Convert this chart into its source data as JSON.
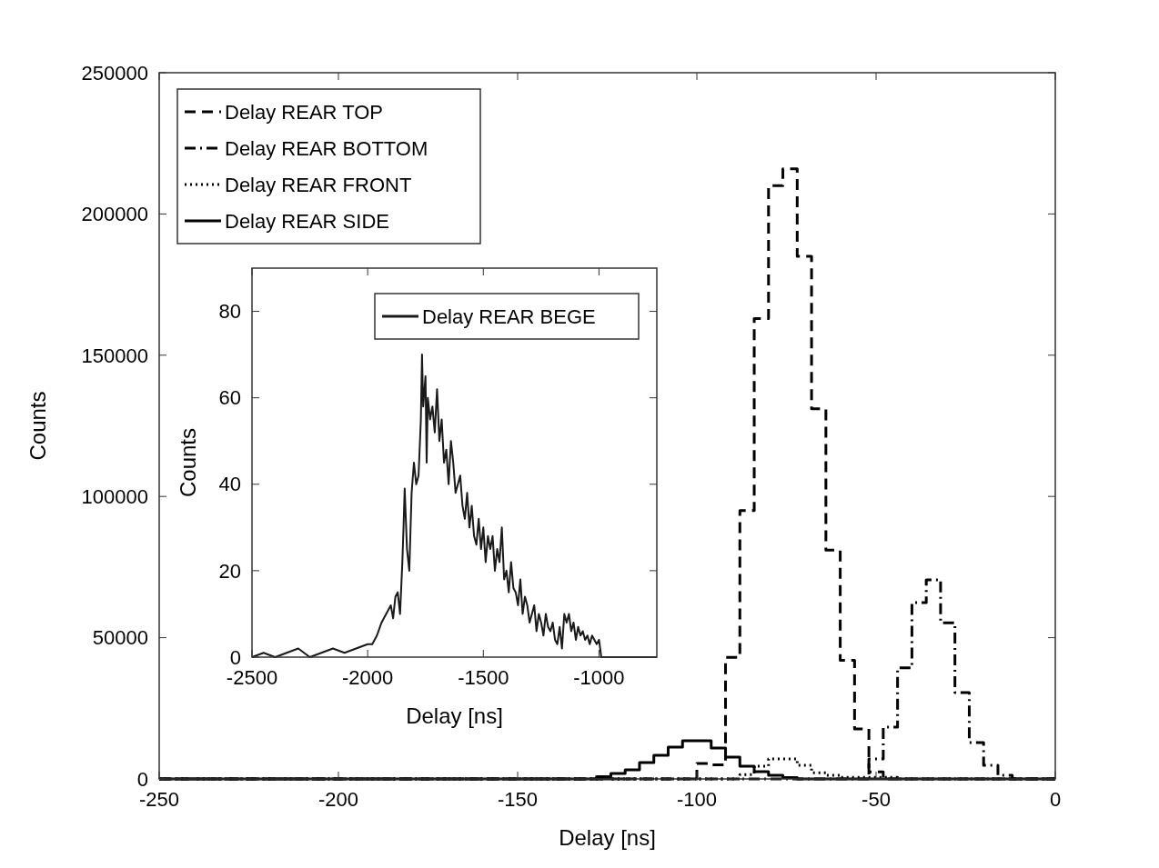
{
  "chart_data": [
    {
      "type": "step",
      "xlabel": "Delay [ns]",
      "ylabel": "Counts",
      "xlim": [
        -250,
        0
      ],
      "ylim": [
        0,
        250000
      ],
      "xticks": [
        -250,
        -200,
        -150,
        -100,
        -50,
        0
      ],
      "yticks": [
        0,
        50000,
        100000,
        150000,
        200000,
        250000
      ],
      "legend": "top left",
      "series": [
        {
          "name": "Delay REAR TOP",
          "color": "#000000",
          "line_style": "dashed",
          "x": [
            -250,
            -100,
            -96,
            -92,
            -88,
            -84,
            -80,
            -76,
            -72,
            -68,
            -64,
            -60,
            -56,
            -52,
            -48,
            0
          ],
          "values": [
            0,
            5500,
            5000,
            43000,
            95000,
            163000,
            210000,
            216000,
            185000,
            131000,
            81000,
            42000,
            17700,
            2500,
            0,
            0
          ]
        },
        {
          "name": "Delay REAR BOTTOM",
          "color": "#000000",
          "line_style": "dashdot",
          "x": [
            -250,
            -52,
            -48,
            -44,
            -40,
            -36,
            -32,
            -28,
            -24,
            -20,
            -16,
            -12,
            0
          ],
          "values": [
            0,
            7100,
            18300,
            39300,
            62400,
            70500,
            55300,
            30600,
            12900,
            4800,
            1300,
            0,
            0
          ]
        },
        {
          "name": "Delay REAR FRONT",
          "color": "#000000",
          "line_style": "dotted",
          "x": [
            -250,
            -88,
            -84,
            -80,
            -76,
            -72,
            -68,
            -64,
            -60,
            -44,
            0
          ],
          "values": [
            0,
            1500,
            4500,
            7100,
            7100,
            4800,
            2200,
            1300,
            600,
            0,
            0
          ]
        },
        {
          "name": "Delay REAR SIDE",
          "color": "#000000",
          "line_style": "solid",
          "x": [
            -250,
            -128,
            -124,
            -120,
            -116,
            -112,
            -108,
            -104,
            -100,
            -96,
            -92,
            -88,
            -84,
            -80,
            -76,
            -72,
            0
          ],
          "values": [
            0,
            800,
            1900,
            3200,
            5800,
            8400,
            11300,
            13500,
            13500,
            10900,
            7700,
            4500,
            2600,
            1300,
            500,
            0,
            0
          ]
        }
      ]
    },
    {
      "type": "line",
      "xlabel": "Delay [ns]",
      "ylabel": "Counts",
      "xlim": [
        -2500,
        -750
      ],
      "ylim": [
        0,
        90
      ],
      "xticks": [
        -2500,
        -2000,
        -1500,
        -1000
      ],
      "yticks": [
        0,
        20,
        40,
        60,
        80
      ],
      "legend": "top right",
      "series": [
        {
          "name": "Delay REAR BEGE",
          "color": "#1a1a1a",
          "line_style": "solid",
          "x": [
            -2500,
            -2450,
            -2400,
            -2350,
            -2300,
            -2250,
            -2200,
            -2150,
            -2100,
            -2050,
            -2000,
            -1980,
            -1960,
            -1940,
            -1920,
            -1900,
            -1890,
            -1880,
            -1870,
            -1860,
            -1850,
            -1845,
            -1840,
            -1830,
            -1820,
            -1810,
            -1800,
            -1790,
            -1780,
            -1770,
            -1765,
            -1760,
            -1750,
            -1745,
            -1740,
            -1730,
            -1720,
            -1710,
            -1700,
            -1690,
            -1680,
            -1670,
            -1660,
            -1650,
            -1640,
            -1630,
            -1620,
            -1610,
            -1600,
            -1590,
            -1580,
            -1570,
            -1560,
            -1550,
            -1540,
            -1530,
            -1520,
            -1510,
            -1500,
            -1490,
            -1480,
            -1470,
            -1460,
            -1450,
            -1440,
            -1430,
            -1420,
            -1410,
            -1400,
            -1390,
            -1380,
            -1370,
            -1360,
            -1350,
            -1340,
            -1330,
            -1320,
            -1310,
            -1300,
            -1290,
            -1280,
            -1270,
            -1260,
            -1250,
            -1240,
            -1230,
            -1220,
            -1210,
            -1200,
            -1190,
            -1180,
            -1170,
            -1160,
            -1150,
            -1140,
            -1130,
            -1120,
            -1110,
            -1100,
            -1090,
            -1080,
            -1070,
            -1060,
            -1050,
            -1040,
            -1030,
            -1020,
            -1010,
            -1000,
            -990,
            -900,
            -800,
            -750
          ],
          "values": [
            0,
            1,
            0,
            1,
            2,
            0,
            1,
            2,
            1,
            2,
            3,
            3,
            5,
            8,
            10,
            12,
            9,
            14,
            15,
            10,
            22,
            30,
            39,
            25,
            20,
            38,
            45,
            40,
            42,
            55,
            70,
            58,
            65,
            45,
            60,
            55,
            58,
            52,
            62,
            50,
            55,
            45,
            48,
            40,
            50,
            45,
            38,
            40,
            42,
            35,
            32,
            38,
            30,
            35,
            28,
            26,
            32,
            25,
            30,
            22,
            28,
            25,
            28,
            20,
            25,
            22,
            30,
            18,
            20,
            15,
            22,
            16,
            15,
            12,
            18,
            10,
            14,
            12,
            8,
            10,
            12,
            6,
            10,
            8,
            5,
            10,
            7,
            6,
            8,
            4,
            3,
            7,
            2,
            10,
            8,
            10,
            6,
            8,
            4,
            7,
            5,
            6,
            4,
            5,
            3,
            5,
            4,
            3,
            4,
            0,
            0,
            0,
            0
          ]
        }
      ]
    }
  ]
}
